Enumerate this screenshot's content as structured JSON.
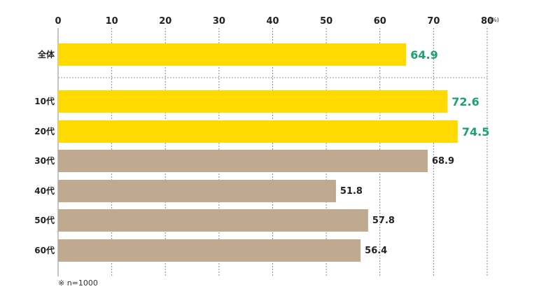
{
  "chart_data": {
    "type": "bar",
    "orientation": "horizontal",
    "unit": "(%)",
    "xlim": [
      0,
      80
    ],
    "ticks": [
      "0",
      "10",
      "20",
      "30",
      "40",
      "50",
      "60",
      "70",
      "80"
    ],
    "grid": true,
    "categories": [
      "全体",
      "10代",
      "20代",
      "30代",
      "40代",
      "50代",
      "60代"
    ],
    "values": [
      64.9,
      72.6,
      74.5,
      68.9,
      51.8,
      57.8,
      56.4
    ],
    "labels": [
      "64.9",
      "72.6",
      "74.5",
      "68.9",
      "51.8",
      "57.8",
      "56.4"
    ],
    "highlight": [
      true,
      true,
      true,
      false,
      false,
      false,
      false
    ],
    "colors": {
      "highlight": "#ffda00",
      "normal": "#bfa98f",
      "highlight_label": "#1aa36b",
      "label": "#222222"
    }
  },
  "footnote": "※ n=1000"
}
